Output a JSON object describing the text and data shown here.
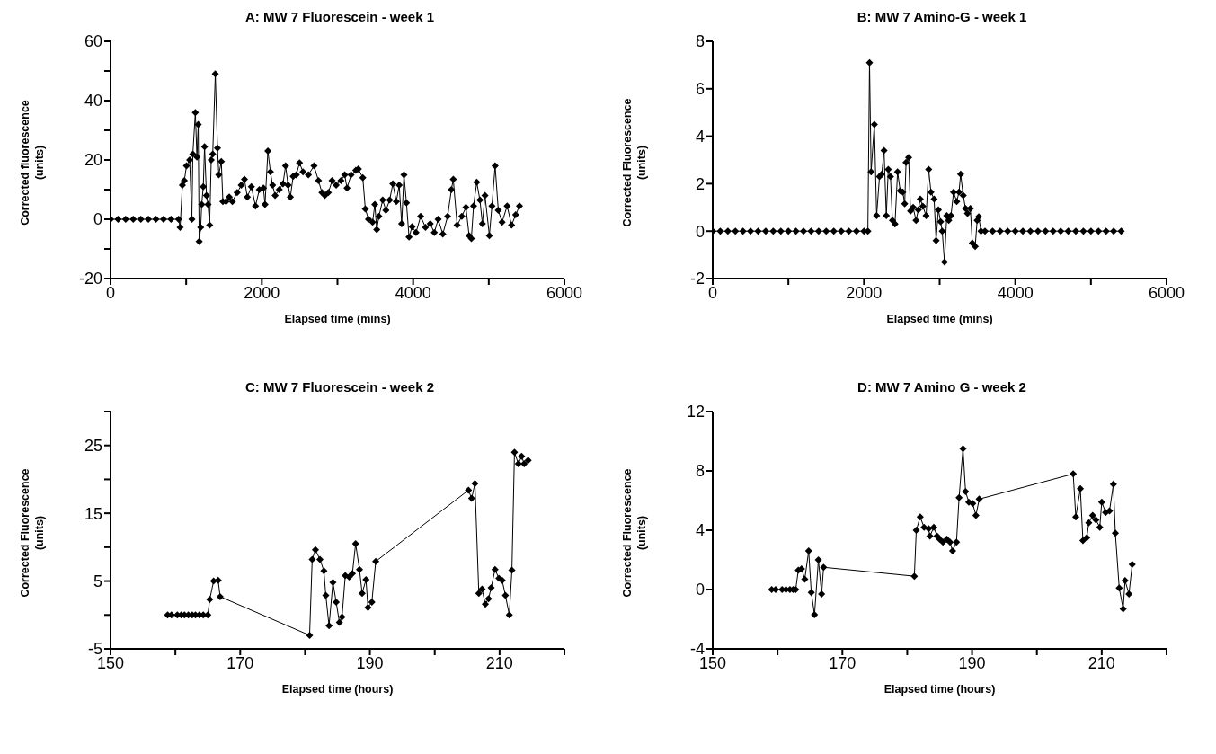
{
  "chart_data": [
    {
      "type": "line",
      "title": "A:  MW 7 Fluorescein - week 1",
      "xlabel": "Elapsed time (mins)",
      "ylabel": "Corrected fluorescence (units)",
      "color": "#000000",
      "marker": "diamond",
      "line_style": "solid",
      "x": [
        0,
        100,
        200,
        300,
        400,
        500,
        600,
        700,
        800,
        900,
        920,
        950,
        975,
        1004,
        1046,
        1075,
        1088,
        1121,
        1142,
        1159,
        1172,
        1192,
        1205,
        1226,
        1243,
        1268,
        1289,
        1310,
        1331,
        1351,
        1385,
        1414,
        1431,
        1464,
        1485,
        1527,
        1569,
        1611,
        1674,
        1728,
        1770,
        1808,
        1862,
        1916,
        1967,
        2021,
        2042,
        2080,
        2113,
        2142,
        2176,
        2230,
        2280,
        2314,
        2347,
        2377,
        2414,
        2456,
        2498,
        2544,
        2615,
        2690,
        2749,
        2795,
        2833,
        2879,
        2929,
        2983,
        3046,
        3096,
        3126,
        3180,
        3243,
        3276,
        3335,
        3368,
        3410,
        3464,
        3494,
        3519,
        3548,
        3598,
        3640,
        3690,
        3732,
        3778,
        3816,
        3849,
        3879,
        3912,
        3946,
        3987,
        4038,
        4100,
        4163,
        4226,
        4280,
        4331,
        4393,
        4456,
        4506,
        4531,
        4582,
        4644,
        4698,
        4740,
        4770,
        4799,
        4841,
        4883,
        4916,
        4950,
        5008,
        5042,
        5084,
        5126,
        5176,
        5243,
        5301,
        5356,
        5406
      ],
      "values": [
        0,
        0,
        0,
        0,
        0,
        0,
        0,
        0,
        0,
        0,
        -2.7,
        11.5,
        13,
        18,
        20,
        0,
        22,
        36,
        21,
        32,
        -7.5,
        -2.7,
        5,
        11,
        24.5,
        8,
        5,
        -2,
        20,
        22,
        49,
        24,
        15,
        19.5,
        6,
        6,
        7.5,
        6,
        9,
        11.5,
        13.5,
        7.5,
        11,
        4.5,
        10,
        10.5,
        5,
        23,
        16,
        11.5,
        8,
        10,
        12,
        18,
        11.5,
        7.5,
        14.5,
        15,
        19,
        16,
        15,
        18,
        13,
        9,
        8,
        9,
        13,
        11.5,
        13,
        15,
        10.5,
        15,
        16.5,
        17,
        14,
        3.5,
        0,
        -1,
        5,
        -3.5,
        1,
        6.5,
        3,
        6.5,
        12,
        6,
        11.5,
        -1.5,
        15,
        5.5,
        -6,
        -2.5,
        -4.5,
        1,
        -2.7,
        -1.5,
        -4.5,
        0,
        -5,
        1,
        10,
        13.5,
        -2,
        1,
        4,
        -5.5,
        -6.5,
        4.5,
        12.5,
        6.5,
        -1.5,
        8,
        -5.5,
        4.5,
        18,
        3,
        -1,
        4.5,
        -2,
        1.5,
        4.5
      ],
      "xlim": [
        0,
        6000
      ],
      "xticks": [
        0,
        {
          "value": 1000,
          "label": null
        },
        2000,
        {
          "value": 3000,
          "label": null
        },
        4000,
        {
          "value": 5000,
          "label": null
        },
        6000
      ],
      "ylim": [
        -20,
        60
      ],
      "yticks": [
        -20,
        {
          "value": -10,
          "label": null
        },
        0,
        {
          "value": 10,
          "label": null
        },
        20,
        {
          "value": 30,
          "label": null
        },
        40,
        {
          "value": 50,
          "label": null
        },
        60
      ]
    },
    {
      "type": "line",
      "title": "B:  MW 7 Amino-G - week 1",
      "xlabel": "Elapsed time (mins)",
      "ylabel": "Corrected Fluorescence (units)",
      "color": "#000000",
      "marker": "diamond",
      "line_style": "solid",
      "x": [
        0,
        100,
        200,
        300,
        400,
        500,
        600,
        700,
        800,
        900,
        1000,
        1100,
        1200,
        1300,
        1400,
        1500,
        1600,
        1700,
        1800,
        1900,
        2000,
        2051,
        2073,
        2094,
        2137,
        2167,
        2205,
        2235,
        2265,
        2295,
        2321,
        2350,
        2376,
        2410,
        2444,
        2479,
        2513,
        2538,
        2556,
        2590,
        2615,
        2650,
        2688,
        2718,
        2744,
        2778,
        2821,
        2855,
        2885,
        2927,
        2953,
        2983,
        3013,
        3034,
        3064,
        3094,
        3120,
        3150,
        3184,
        3226,
        3256,
        3278,
        3312,
        3342,
        3368,
        3406,
        3432,
        3470,
        3496,
        3517,
        3547,
        3600,
        3700,
        3800,
        3900,
        4000,
        4100,
        4200,
        4300,
        4400,
        4500,
        4600,
        4700,
        4800,
        4900,
        5000,
        5100,
        5200,
        5300,
        5400
      ],
      "values": [
        0,
        0,
        0,
        0,
        0,
        0,
        0,
        0,
        0,
        0,
        0,
        0,
        0,
        0,
        0,
        0,
        0,
        0,
        0,
        0,
        0,
        0,
        7.1,
        2.5,
        4.5,
        0.65,
        2.3,
        2.4,
        3.4,
        0.65,
        2.6,
        2.3,
        0.45,
        0.3,
        2.5,
        1.7,
        1.65,
        1.15,
        2.9,
        3.1,
        0.85,
        1,
        0.45,
        0.9,
        1.35,
        1.05,
        0.65,
        2.6,
        1.65,
        1.35,
        -0.4,
        0.9,
        0.4,
        0,
        -1.3,
        0.65,
        0.45,
        0.65,
        1.65,
        1.25,
        1.65,
        2.4,
        1.5,
        0.95,
        0.75,
        0.95,
        -0.5,
        -0.65,
        0.45,
        0.6,
        0,
        0,
        0,
        0,
        0,
        0,
        0,
        0,
        0,
        0,
        0,
        0,
        0,
        0,
        0,
        0,
        0,
        0,
        0,
        0
      ],
      "xlim": [
        0,
        6000
      ],
      "xticks": [
        0,
        {
          "value": 1000,
          "label": null
        },
        2000,
        {
          "value": 3000,
          "label": null
        },
        4000,
        {
          "value": 5000,
          "label": null
        },
        6000
      ],
      "ylim": [
        -2,
        8
      ],
      "yticks": [
        -2,
        0,
        2,
        4,
        6,
        8
      ]
    },
    {
      "type": "line",
      "title": "C:  MW 7 Fluorescein - week 2",
      "xlabel": "Elapsed time (hours)",
      "ylabel": "Corrected Fluorescence (units)",
      "color": "#000000",
      "marker": "diamond",
      "line_style": "solid",
      "x": [
        158.8,
        159.4,
        160.3,
        160.9,
        161.4,
        162.0,
        162.6,
        163.1,
        163.7,
        164.3,
        165.0,
        165.3,
        165.9,
        166.6,
        166.9,
        180.7,
        181.1,
        181.6,
        182.3,
        182.9,
        183.2,
        183.7,
        184.3,
        184.8,
        185.3,
        185.7,
        186.2,
        186.8,
        187.3,
        187.8,
        188.4,
        188.8,
        189.4,
        189.7,
        190.3,
        190.9,
        205.2,
        205.7,
        206.2,
        206.8,
        207.3,
        207.8,
        208.3,
        208.7,
        209.3,
        209.9,
        210.4,
        210.9,
        211.5,
        211.9,
        212.3,
        212.9,
        213.4,
        213.8,
        214.4
      ],
      "values": [
        0,
        0,
        0,
        0,
        0,
        0,
        0,
        0,
        0,
        0,
        0,
        2.3,
        5,
        5.1,
        2.7,
        -3,
        8.2,
        9.6,
        8.2,
        6.5,
        2.9,
        -1.6,
        4.8,
        1.9,
        -1.1,
        -0.3,
        5.8,
        5.6,
        6.1,
        10.5,
        6.7,
        3.2,
        5.2,
        1.1,
        1.9,
        7.9,
        18.4,
        17.2,
        19.4,
        3.2,
        3.8,
        1.6,
        2.4,
        4,
        6.7,
        5.4,
        5.1,
        2.9,
        0,
        6.6,
        24,
        22.3,
        23.4,
        22.3,
        22.8
      ],
      "xlim": [
        150,
        220
      ],
      "xticks": [
        150,
        {
          "value": 160,
          "label": null
        },
        170,
        {
          "value": 180,
          "label": null
        },
        190,
        {
          "value": 200,
          "label": null
        },
        210,
        {
          "value": 220,
          "label": null
        }
      ],
      "ylim": [
        -5,
        30
      ],
      "yticks": [
        -5,
        {
          "value": 0,
          "label": null
        },
        5,
        {
          "value": 10,
          "label": null
        },
        15,
        {
          "value": 20,
          "label": null
        },
        25,
        {
          "value": 30,
          "label": null
        }
      ]
    },
    {
      "type": "line",
      "title": "D:  MW 7 Amino G - week 2",
      "xlabel": "Elapsed time (hours)",
      "ylabel": "Corrected Fluorescence (units)",
      "color": "#000000",
      "marker": "diamond",
      "line_style": "solid",
      "x": [
        159.1,
        159.7,
        160.7,
        161.3,
        161.9,
        162.4,
        162.8,
        163.2,
        163.7,
        164.2,
        164.8,
        165.2,
        165.7,
        166.3,
        166.8,
        167.1,
        181.1,
        181.4,
        182.0,
        182.6,
        183.3,
        183.5,
        184.1,
        184.6,
        185.0,
        185.5,
        186.1,
        186.6,
        187.0,
        187.6,
        188.0,
        188.6,
        189.0,
        189.5,
        190.1,
        190.6,
        191.1,
        205.6,
        206.0,
        206.7,
        207.1,
        207.7,
        208.0,
        208.6,
        209.1,
        209.7,
        210.0,
        210.6,
        211.2,
        211.8,
        212.1,
        212.7,
        213.3,
        213.6,
        214.2,
        214.7
      ],
      "values": [
        0,
        0,
        0,
        0,
        0,
        0,
        0,
        1.3,
        1.4,
        0.7,
        2.6,
        -0.2,
        -1.7,
        2,
        -0.3,
        1.5,
        0.9,
        4,
        4.9,
        4.2,
        4.1,
        3.6,
        4.2,
        3.6,
        3.4,
        3.2,
        3.4,
        3.2,
        2.6,
        3.2,
        6.2,
        9.5,
        6.6,
        5.9,
        5.8,
        5,
        6.1,
        7.8,
        4.9,
        6.8,
        3.3,
        3.5,
        4.5,
        5,
        4.7,
        4.2,
        5.9,
        5.2,
        5.3,
        7.1,
        3.8,
        0.1,
        -1.3,
        0.6,
        -0.3,
        1.7
      ],
      "xlim": [
        150,
        220
      ],
      "xticks": [
        150,
        {
          "value": 160,
          "label": null
        },
        170,
        {
          "value": 180,
          "label": null
        },
        190,
        {
          "value": 200,
          "label": null
        },
        210,
        {
          "value": 220,
          "label": null
        }
      ],
      "ylim": [
        -4,
        12
      ],
      "yticks": [
        -4,
        0,
        4,
        8,
        12
      ]
    }
  ]
}
